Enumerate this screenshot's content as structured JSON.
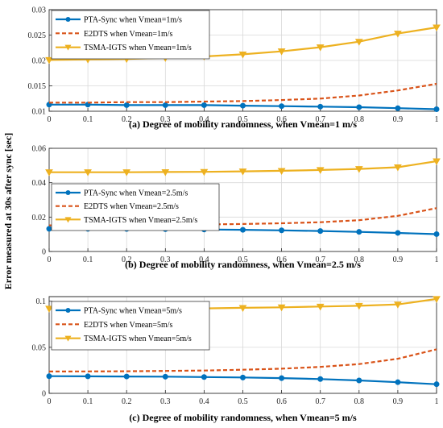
{
  "ylabel": "Error measured at 30s after sync [sec]",
  "colors": {
    "pta": "#0072BD",
    "e2dts": "#D95319",
    "tsma": "#EDB120",
    "grid": "#d9d9d9",
    "axis": "#262626"
  },
  "chart_data": [
    {
      "type": "line",
      "xlabel": "(a) Degree of mobility randomness, when Vmean=1 m/s",
      "x": [
        0,
        0.1,
        0.2,
        0.3,
        0.4,
        0.5,
        0.6,
        0.7,
        0.8,
        0.9,
        1
      ],
      "xticks": [
        "0",
        "0.1",
        "0.2",
        "0.3",
        "0.4",
        "0.5",
        "0.6",
        "0.7",
        "0.8",
        "0.9",
        "1"
      ],
      "ylim": [
        0.01,
        0.03
      ],
      "yticks": [
        0.01,
        0.015,
        0.02,
        0.025,
        0.03
      ],
      "ytick_labels": [
        "0.01",
        "0.015",
        "0.02",
        "0.025",
        "0.03"
      ],
      "legend": "top-left",
      "series": [
        {
          "name": "PTA-Sync when Vmean=1m/s",
          "marker": "circle",
          "style": "solid",
          "values": [
            0.0113,
            0.0113,
            0.0112,
            0.0112,
            0.0112,
            0.0111,
            0.011,
            0.0109,
            0.0108,
            0.0106,
            0.0104
          ]
        },
        {
          "name": "E2DTS when Vmean=1m/s",
          "marker": "none",
          "style": "dashed",
          "values": [
            0.0117,
            0.0117,
            0.0118,
            0.0118,
            0.0119,
            0.012,
            0.0122,
            0.0125,
            0.0131,
            0.0141,
            0.0154
          ]
        },
        {
          "name": "TSMA-IGTS when Vmean=1m/s",
          "marker": "triangle",
          "style": "solid",
          "values": [
            0.0201,
            0.0202,
            0.0203,
            0.0205,
            0.0208,
            0.0212,
            0.0218,
            0.0226,
            0.0237,
            0.0253,
            0.0265
          ]
        }
      ]
    },
    {
      "type": "line",
      "xlabel": "(b) Degree of mobility randomness, when Vmean=2.5 m/s",
      "x": [
        0,
        0.1,
        0.2,
        0.3,
        0.4,
        0.5,
        0.6,
        0.7,
        0.8,
        0.9,
        1
      ],
      "xticks": [
        "0",
        "0.1",
        "0.2",
        "0.3",
        "0.4",
        "0.5",
        "0.6",
        "0.7",
        "0.8",
        "0.9",
        "1"
      ],
      "ylim": [
        0,
        0.06
      ],
      "yticks": [
        0,
        0.02,
        0.04,
        0.06
      ],
      "ytick_labels": [
        "0",
        "0.02",
        "0.04",
        "0.06"
      ],
      "legend": "left",
      "series": [
        {
          "name": "PTA-Sync when Vmean=2.5m/s",
          "marker": "circle",
          "style": "solid",
          "values": [
            0.0132,
            0.0132,
            0.0131,
            0.013,
            0.0128,
            0.0126,
            0.0123,
            0.0119,
            0.0114,
            0.0108,
            0.0101
          ]
        },
        {
          "name": "E2DTS when Vmean=2.5m/s",
          "marker": "none",
          "style": "dashed",
          "values": [
            0.0152,
            0.0153,
            0.0154,
            0.0155,
            0.0157,
            0.016,
            0.0164,
            0.017,
            0.0182,
            0.0207,
            0.0252
          ]
        },
        {
          "name": "TSMA-IGTS when Vmean=2.5m/s",
          "marker": "triangle",
          "style": "solid",
          "values": [
            0.0461,
            0.0461,
            0.0461,
            0.0462,
            0.0463,
            0.0466,
            0.0469,
            0.0474,
            0.048,
            0.049,
            0.0525
          ]
        }
      ]
    },
    {
      "type": "line",
      "xlabel": "(c) Degree of mobility randomness, when Vmean=5 m/s",
      "x": [
        0,
        0.1,
        0.2,
        0.3,
        0.4,
        0.5,
        0.6,
        0.7,
        0.8,
        0.9,
        1
      ],
      "xticks": [
        "0",
        "0.1",
        "0.2",
        "0.3",
        "0.4",
        "0.5",
        "0.6",
        "0.7",
        "0.8",
        "0.9",
        "1"
      ],
      "ylim": [
        0,
        0.105
      ],
      "yticks": [
        0,
        0.05,
        0.1
      ],
      "ytick_labels": [
        "0",
        "0.05",
        "0.1"
      ],
      "legend": "top-left",
      "series": [
        {
          "name": "PTA-Sync when Vmean=5m/s",
          "marker": "circle",
          "style": "solid",
          "values": [
            0.0186,
            0.0185,
            0.0183,
            0.0181,
            0.0177,
            0.0172,
            0.0165,
            0.0155,
            0.014,
            0.0121,
            0.0099
          ]
        },
        {
          "name": "E2DTS when Vmean=5m/s",
          "marker": "none",
          "style": "dashed",
          "values": [
            0.0237,
            0.0238,
            0.024,
            0.0243,
            0.0248,
            0.0256,
            0.0268,
            0.0287,
            0.0318,
            0.0375,
            0.0478
          ]
        },
        {
          "name": "TSMA-IGTS when Vmean=5m/s",
          "marker": "triangle",
          "style": "solid",
          "values": [
            0.092,
            0.0918,
            0.0917,
            0.0918,
            0.0922,
            0.0928,
            0.0934,
            0.0942,
            0.095,
            0.0965,
            0.1025
          ]
        }
      ]
    }
  ]
}
